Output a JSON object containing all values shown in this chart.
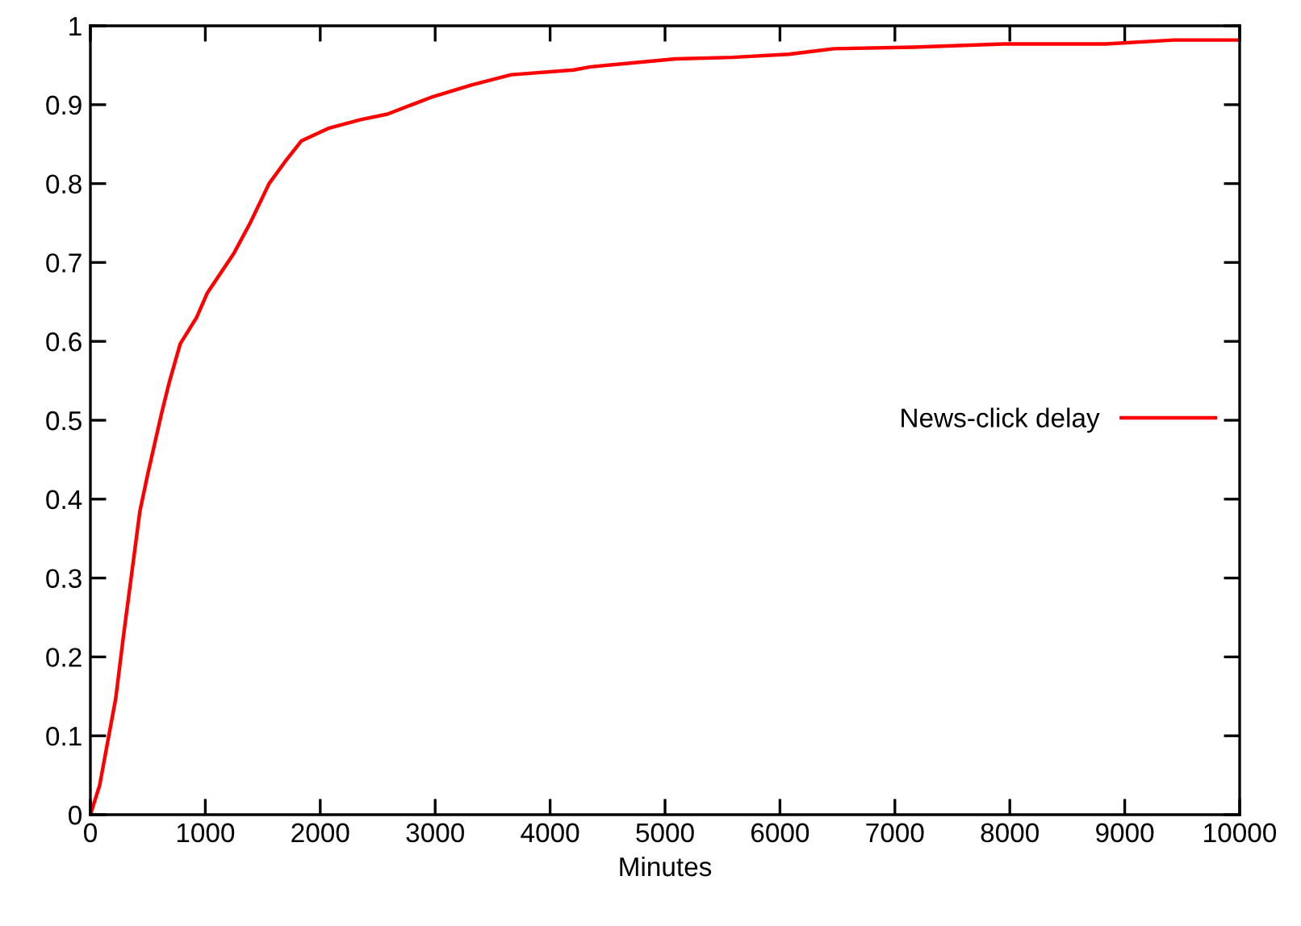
{
  "chart_data": {
    "type": "line",
    "xlabel": "Minutes",
    "xlim": [
      0,
      10000
    ],
    "ylim": [
      0,
      1
    ],
    "xticks": [
      0,
      1000,
      2000,
      3000,
      4000,
      5000,
      6000,
      7000,
      8000,
      9000,
      10000
    ],
    "yticks": [
      0,
      0.1,
      0.2,
      0.3,
      0.4,
      0.5,
      0.6,
      0.7,
      0.8,
      0.9,
      1
    ],
    "grid": false,
    "legend": "right",
    "marker": "none",
    "line_style": "solid",
    "series": [
      {
        "name": "News-click delay",
        "color": "#ff0000",
        "x": [
          0,
          80,
          220,
          290,
          431,
          501,
          618,
          688,
          782,
          923,
          1016,
          1250,
          1390,
          1555,
          1695,
          1835,
          2069,
          2350,
          2584,
          2959,
          3316,
          3662,
          4204,
          4351,
          5090,
          5583,
          6076,
          6471,
          7160,
          7948,
          8834,
          9427,
          9993
        ],
        "values": [
          0,
          0.037,
          0.147,
          0.229,
          0.385,
          0.433,
          0.508,
          0.549,
          0.597,
          0.63,
          0.661,
          0.712,
          0.75,
          0.8,
          0.828,
          0.854,
          0.87,
          0.881,
          0.888,
          0.909,
          0.925,
          0.938,
          0.944,
          0.948,
          0.958,
          0.96,
          0.964,
          0.971,
          0.973,
          0.977,
          0.977,
          0.982,
          0.982
        ]
      }
    ]
  }
}
